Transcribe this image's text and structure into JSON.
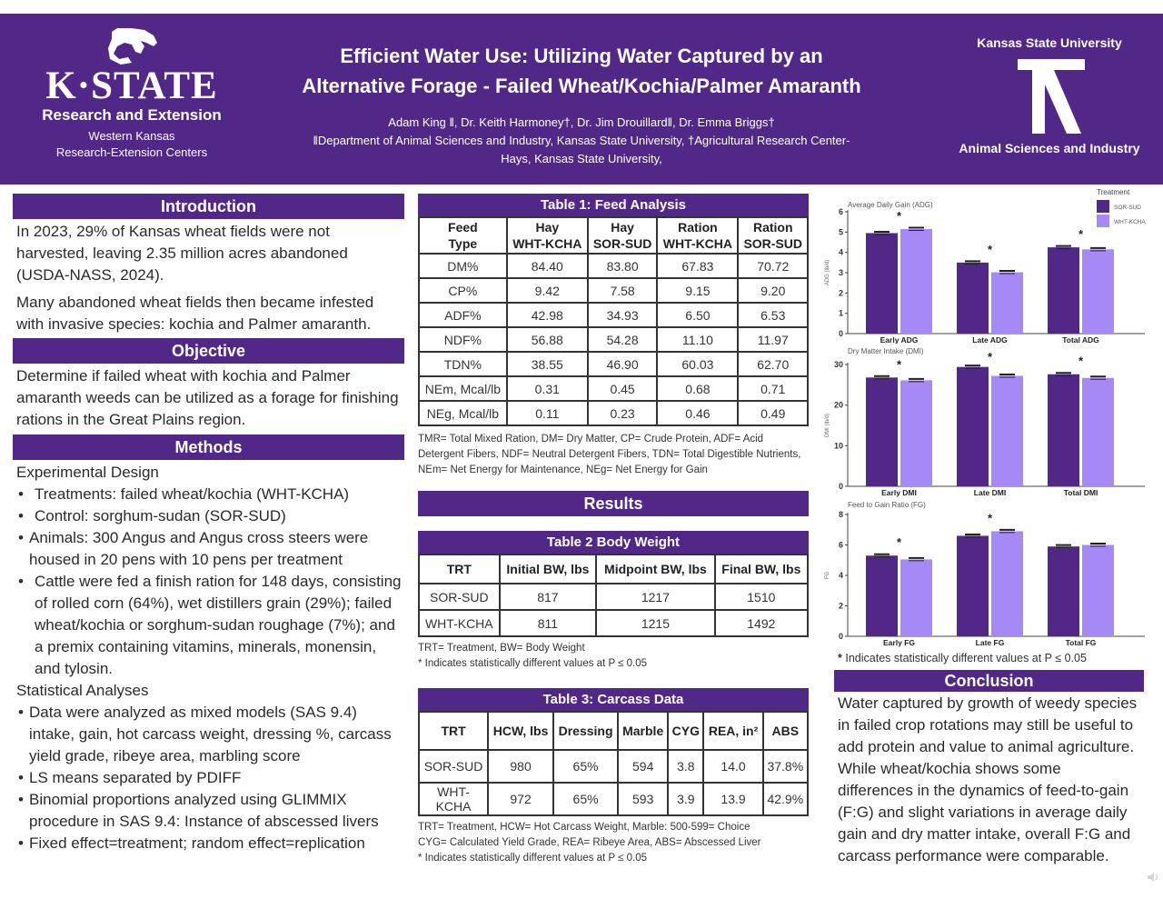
{
  "header": {
    "logo_left": {
      "wordmark": "K·STATE",
      "line1": "Research and Extension",
      "line2": "Western Kansas",
      "line3": "Research-Extension Centers"
    },
    "title_line1": "Efficient Water Use: Utilizing Water Captured by an",
    "title_line2": "Alternative Forage - Failed Wheat/Kochia/Palmer Amaranth",
    "authors": "Adam King ǁ, Dr. Keith Harmoney†, Dr. Jim Drouillardǁ, Dr. Emma Briggs†",
    "affiliation_line1": "ǁDepartment of Animal Sciences and Industry, Kansas State University, †Agricultural Research Center-",
    "affiliation_line2": "Hays, Kansas State University,",
    "logo_right": {
      "top": "Kansas State University",
      "bottom": "Animal Sciences and Industry"
    }
  },
  "introduction": {
    "heading": "Introduction",
    "para1": "In 2023, 29% of Kansas wheat fields were not harvested, leaving 2.35 million acres abandoned (USDA-NASS, 2024).",
    "para2": "Many abandoned wheat fields then became infested with invasive species: kochia and Palmer amaranth."
  },
  "objective": {
    "heading": "Objective",
    "text": "Determine if failed wheat with kochia and Palmer amaranth weeds can be utilized as a forage for finishing rations in the Great Plains region."
  },
  "methods": {
    "heading": "Methods",
    "design_heading": "Experimental Design",
    "design_items": [
      "Treatments: failed wheat/kochia (WHT-KCHA)",
      "Control: sorghum-sudan (SOR-SUD)",
      "Animals: 300 Angus and Angus cross steers were housed in 20 pens with 10 pens per treatment",
      "Cattle were fed a finish ration for 148 days, consisting of rolled corn (64%), wet distillers grain (29%); failed wheat/kochia or sorghum-sudan roughage (7%); and a premix containing vitamins, minerals, monensin, and tylosin."
    ],
    "stats_heading": "Statistical Analyses",
    "stats_items": [
      "Data were analyzed as mixed models (SAS 9.4) intake, gain, hot carcass weight, dressing %, carcass yield grade, ribeye area, marbling score",
      "LS means separated by PDIFF",
      "Binomial proportions analyzed using GLIMMIX procedure in SAS 9.4: Instance of abscessed livers",
      "Fixed effect=treatment; random effect=replication"
    ]
  },
  "table1": {
    "title": "Table 1: Feed Analysis",
    "headers": [
      [
        "Feed",
        "Type"
      ],
      [
        "Hay",
        "WHT-KCHA"
      ],
      [
        "Hay",
        "SOR-SUD"
      ],
      [
        "Ration",
        "WHT-KCHA"
      ],
      [
        "Ration",
        "SOR-SUD"
      ]
    ],
    "rows": [
      [
        "DM%",
        "84.40",
        "83.80",
        "67.83",
        "70.72"
      ],
      [
        "CP%",
        "9.42",
        "7.58",
        "9.15",
        "9.20"
      ],
      [
        "ADF%",
        "42.98",
        "34.93",
        "6.50",
        "6.53"
      ],
      [
        "NDF%",
        "56.88",
        "54.28",
        "11.10",
        "11.97"
      ],
      [
        "TDN%",
        "38.55",
        "46.90",
        "60.03",
        "62.70"
      ],
      [
        "NEm, Mcal/lb",
        "0.31",
        "0.45",
        "0.68",
        "0.71"
      ],
      [
        "NEg, Mcal/lb",
        "0.11",
        "0.23",
        "0.46",
        "0.49"
      ]
    ],
    "note": "TMR= Total Mixed Ration, DM= Dry Matter, CP= Crude Protein, ADF= Acid Detergent Fibers, NDF= Neutral Detergent Fibers, TDN= Total Digestible Nutrients, NEm= Net Energy for Maintenance, NEg= Net Energy for Gain"
  },
  "results": {
    "heading": "Results"
  },
  "table2": {
    "title": "Table 2 Body Weight",
    "headers": [
      "TRT",
      "Initial BW, lbs",
      "Midpoint BW, lbs",
      "Final BW, lbs"
    ],
    "rows": [
      [
        "SOR-SUD",
        "817",
        "1217",
        "1510"
      ],
      [
        "WHT-KCHA",
        "811",
        "1215",
        "1492"
      ]
    ],
    "note1": "TRT= Treatment, BW= Body Weight",
    "note2": "* Indicates statistically different values at P ≤ 0.05"
  },
  "table3": {
    "title": "Table 3: Carcass Data",
    "headers": [
      "TRT",
      "HCW, lbs",
      "Dressing",
      "Marble",
      "CYG",
      "REA, in²",
      "ABS"
    ],
    "rows": [
      [
        "SOR-SUD",
        "980",
        "65%",
        "594",
        "3.8",
        "14.0",
        "37.8%"
      ],
      [
        "WHT-KCHA",
        "972",
        "65%",
        "593",
        "3.9",
        "13.9",
        "42.9%"
      ]
    ],
    "note1": "TRT= Treatment, HCW= Hot Carcass Weight, Marble: 500-599= Choice",
    "note2": "CYG= Calculated Yield Grade, REA= Ribeye Area, ABS= Abscessed Liver",
    "note3": "* Indicates statistically different values at P ≤ 0.05"
  },
  "colors": {
    "primary_purple": "#512888",
    "sor_sud": "#512888",
    "wht_kcha": "#A58AF5"
  },
  "chart_legend": {
    "title": "Treatment",
    "items": [
      {
        "label": "SOR-SUD",
        "color": "#512888"
      },
      {
        "label": "WHT-KCHA",
        "color": "#A58AF5"
      }
    ]
  },
  "chart_data": [
    {
      "type": "bar",
      "title": "Average Daily Gain (ADG)",
      "ylabel": "ADG (lb/d)",
      "xlabel": "",
      "categories": [
        "Early ADG",
        "Late ADG",
        "Total ADG"
      ],
      "series": [
        {
          "name": "SOR-SUD",
          "values": [
            4.95,
            3.5,
            4.25
          ]
        },
        {
          "name": "WHT-KCHA",
          "values": [
            5.15,
            3.02,
            4.15
          ]
        }
      ],
      "significant": [
        true,
        true,
        true
      ],
      "ylim": [
        0,
        6
      ],
      "yticks": [
        0,
        1,
        2,
        3,
        4,
        5,
        6
      ],
      "legend": "top-right"
    },
    {
      "type": "bar",
      "title": "Dry Matter Intake (DMI)",
      "ylabel": "DMI (lb/d)",
      "xlabel": "",
      "categories": [
        "Early DMI",
        "Late DMI",
        "Total DMI"
      ],
      "series": [
        {
          "name": "SOR-SUD",
          "values": [
            26.8,
            29.4,
            27.6
          ]
        },
        {
          "name": "WHT-KCHA",
          "values": [
            26.1,
            27.2,
            26.7
          ]
        }
      ],
      "significant": [
        true,
        true,
        true
      ],
      "ylim": [
        0,
        30
      ],
      "yticks": [
        0,
        10,
        20,
        30
      ]
    },
    {
      "type": "bar",
      "title": "Feed to Gain Ratio (FG)",
      "ylabel": "FG",
      "xlabel": "",
      "categories": [
        "Early FG",
        "Late FG",
        "Total FG"
      ],
      "series": [
        {
          "name": "SOR-SUD",
          "values": [
            5.3,
            6.6,
            5.9
          ]
        },
        {
          "name": "WHT-KCHA",
          "values": [
            5.05,
            6.9,
            6.0
          ]
        }
      ],
      "significant": [
        true,
        true,
        false
      ],
      "ylim": [
        0,
        8
      ],
      "yticks": [
        0,
        2,
        4,
        6,
        8
      ]
    }
  ],
  "chart_footnote": "Indicates statistically different values at P ≤ 0.05",
  "conclusion": {
    "heading": "Conclusion",
    "text": "Water captured by growth of weedy species in failed crop rotations may still be useful to add protein and value to animal agriculture. While wheat/kochia shows some differences in the dynamics of feed-to-gain (F:G) and slight variations in average daily gain and dry matter intake, overall F:G and carcass performance were comparable."
  }
}
